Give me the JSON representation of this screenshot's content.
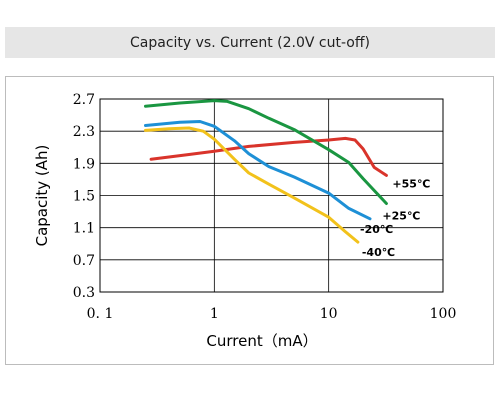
{
  "chart_data": {
    "type": "line",
    "title": "Capacity vs. Current (2.0V cut-off)",
    "xlabel": "Current（mA）",
    "ylabel": "Capacity (Ah)",
    "x_scale": "log",
    "xlim": [
      0.1,
      100
    ],
    "ylim": [
      0.3,
      2.7
    ],
    "x_ticks": [
      0.1,
      1,
      10,
      100
    ],
    "x_tick_labels": [
      "0. 1",
      "1",
      "10",
      "100"
    ],
    "y_ticks": [
      0.3,
      0.7,
      1.1,
      1.5,
      1.9,
      2.3,
      2.7
    ],
    "y_tick_labels": [
      "0.3",
      "0.7",
      "1.1",
      "1.5",
      "1.9",
      "2.3",
      "2.7"
    ],
    "grid": true,
    "series": [
      {
        "name": "+55℃",
        "color": "#d9342b",
        "x": [
          0.28,
          0.6,
          1.0,
          2.0,
          5.0,
          10.0,
          14.0,
          17.0,
          20.0,
          25.0,
          32.0
        ],
        "y": [
          1.95,
          2.01,
          2.05,
          2.11,
          2.16,
          2.19,
          2.21,
          2.19,
          2.08,
          1.85,
          1.75
        ]
      },
      {
        "name": "+25℃",
        "color": "#1a9641",
        "x": [
          0.25,
          0.5,
          1.0,
          1.3,
          2.0,
          3.0,
          5.0,
          10.0,
          15.0,
          20.0,
          32.0
        ],
        "y": [
          2.61,
          2.65,
          2.68,
          2.67,
          2.58,
          2.46,
          2.32,
          2.07,
          1.91,
          1.71,
          1.4
        ]
      },
      {
        "name": "-20℃",
        "color": "#1e90d6",
        "x": [
          0.25,
          0.5,
          0.75,
          1.0,
          1.5,
          2.0,
          3.0,
          5.0,
          10.0,
          15.0,
          23.0
        ],
        "y": [
          2.37,
          2.41,
          2.42,
          2.36,
          2.18,
          2.02,
          1.86,
          1.73,
          1.53,
          1.34,
          1.21
        ]
      },
      {
        "name": "-40℃",
        "color": "#f2c21b",
        "x": [
          0.25,
          0.4,
          0.6,
          0.8,
          1.0,
          1.5,
          2.0,
          3.0,
          5.0,
          10.0,
          14.0,
          18.0
        ],
        "y": [
          2.31,
          2.33,
          2.34,
          2.3,
          2.2,
          1.95,
          1.78,
          1.64,
          1.47,
          1.23,
          1.05,
          0.92
        ]
      }
    ]
  }
}
